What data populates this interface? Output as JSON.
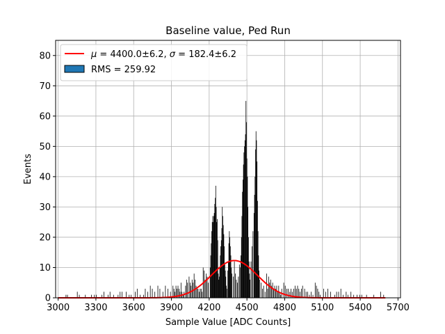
{
  "chart_data": {
    "type": "bar",
    "title": "Baseline value, Ped Run",
    "xlabel": "Sample Value [ADC Counts]",
    "ylabel": "Events",
    "xlim": [
      2980,
      5720
    ],
    "ylim": [
      0,
      85
    ],
    "xticks": [
      3000,
      3300,
      3600,
      3900,
      4200,
      4500,
      4800,
      5100,
      5400,
      5700
    ],
    "yticks": [
      0,
      10,
      20,
      30,
      40,
      50,
      60,
      70,
      80
    ],
    "grid": true,
    "legend_position": "top-left",
    "legend": {
      "fit_label_mu": "μ",
      "fit_value_mu": "4400.0±6.2",
      "fit_label_sigma": "σ",
      "fit_value_sigma": "182.4±6.2",
      "hist_label": "RMS = 259.92"
    },
    "colors": {
      "fit": "#ff0000",
      "hist_legend_fill": "#1f77b4",
      "bars": "#000000",
      "grid": "#b0b0b0"
    },
    "histogram": {
      "name": "RMS = 259.92",
      "bin_width": 4,
      "bins": [
        [
          3060,
          1
        ],
        [
          3072,
          1
        ],
        [
          3150,
          2
        ],
        [
          3166,
          1
        ],
        [
          3214,
          1
        ],
        [
          3262,
          1
        ],
        [
          3286,
          1
        ],
        [
          3302,
          1
        ],
        [
          3346,
          1
        ],
        [
          3362,
          2
        ],
        [
          3394,
          1
        ],
        [
          3410,
          2
        ],
        [
          3438,
          1
        ],
        [
          3474,
          1
        ],
        [
          3490,
          2
        ],
        [
          3506,
          2
        ],
        [
          3538,
          2
        ],
        [
          3562,
          1
        ],
        [
          3578,
          1
        ],
        [
          3610,
          2
        ],
        [
          3626,
          3
        ],
        [
          3650,
          1
        ],
        [
          3676,
          1
        ],
        [
          3690,
          3
        ],
        [
          3710,
          2
        ],
        [
          3730,
          4
        ],
        [
          3746,
          3
        ],
        [
          3766,
          2
        ],
        [
          3790,
          4
        ],
        [
          3806,
          3
        ],
        [
          3830,
          2
        ],
        [
          3850,
          4
        ],
        [
          3870,
          3
        ],
        [
          3890,
          2
        ],
        [
          3910,
          4
        ],
        [
          3918,
          3
        ],
        [
          3926,
          2
        ],
        [
          3934,
          4
        ],
        [
          3942,
          3
        ],
        [
          3950,
          4
        ],
        [
          3958,
          3
        ],
        [
          3966,
          2
        ],
        [
          3974,
          5
        ],
        [
          3982,
          2
        ],
        [
          3990,
          1
        ],
        [
          3998,
          2
        ],
        [
          4010,
          4
        ],
        [
          4018,
          6
        ],
        [
          4026,
          5
        ],
        [
          4038,
          7
        ],
        [
          4046,
          5
        ],
        [
          4054,
          4
        ],
        [
          4062,
          6
        ],
        [
          4070,
          5
        ],
        [
          4078,
          8
        ],
        [
          4086,
          6
        ],
        [
          4094,
          4
        ],
        [
          4102,
          3
        ],
        [
          4110,
          3
        ],
        [
          4118,
          2
        ],
        [
          4126,
          3
        ],
        [
          4134,
          3
        ],
        [
          4142,
          2
        ],
        [
          4150,
          10
        ],
        [
          4158,
          9
        ],
        [
          4166,
          6
        ],
        [
          4174,
          8
        ],
        [
          4182,
          7
        ],
        [
          4190,
          5
        ],
        [
          4206,
          10
        ],
        [
          4210,
          14
        ],
        [
          4214,
          18
        ],
        [
          4218,
          22
        ],
        [
          4222,
          25
        ],
        [
          4226,
          27
        ],
        [
          4230,
          25
        ],
        [
          4234,
          27
        ],
        [
          4238,
          28
        ],
        [
          4242,
          31
        ],
        [
          4246,
          33
        ],
        [
          4250,
          37
        ],
        [
          4254,
          30
        ],
        [
          4258,
          25
        ],
        [
          4262,
          26
        ],
        [
          4266,
          19
        ],
        [
          4270,
          8
        ],
        [
          4274,
          6
        ],
        [
          4278,
          7
        ],
        [
          4282,
          10
        ],
        [
          4286,
          14
        ],
        [
          4290,
          17
        ],
        [
          4294,
          19
        ],
        [
          4298,
          23
        ],
        [
          4302,
          30
        ],
        [
          4306,
          27
        ],
        [
          4310,
          24
        ],
        [
          4314,
          21
        ],
        [
          4318,
          17
        ],
        [
          4322,
          11
        ],
        [
          4326,
          9
        ],
        [
          4330,
          7
        ],
        [
          4334,
          4
        ],
        [
          4338,
          3
        ],
        [
          4346,
          9
        ],
        [
          4350,
          12
        ],
        [
          4354,
          18
        ],
        [
          4358,
          22
        ],
        [
          4362,
          20
        ],
        [
          4366,
          17
        ],
        [
          4370,
          14
        ],
        [
          4374,
          10
        ],
        [
          4378,
          8
        ],
        [
          4390,
          7
        ],
        [
          4398,
          12
        ],
        [
          4406,
          8
        ],
        [
          4414,
          6
        ],
        [
          4422,
          5
        ],
        [
          4430,
          7
        ],
        [
          4438,
          11
        ],
        [
          4446,
          10
        ],
        [
          4450,
          14
        ],
        [
          4454,
          20
        ],
        [
          4458,
          27
        ],
        [
          4462,
          35
        ],
        [
          4466,
          39
        ],
        [
          4470,
          44
        ],
        [
          4474,
          48
        ],
        [
          4478,
          50
        ],
        [
          4482,
          52
        ],
        [
          4486,
          54
        ],
        [
          4490,
          65
        ],
        [
          4494,
          58
        ],
        [
          4498,
          46
        ],
        [
          4502,
          40
        ],
        [
          4506,
          30
        ],
        [
          4510,
          20
        ],
        [
          4514,
          12
        ],
        [
          4518,
          8
        ],
        [
          4522,
          6
        ],
        [
          4530,
          12
        ],
        [
          4538,
          17
        ],
        [
          4546,
          22
        ],
        [
          4554,
          28
        ],
        [
          4558,
          34
        ],
        [
          4562,
          40
        ],
        [
          4566,
          49
        ],
        [
          4570,
          55
        ],
        [
          4574,
          52
        ],
        [
          4578,
          45
        ],
        [
          4582,
          32
        ],
        [
          4586,
          22
        ],
        [
          4590,
          14
        ],
        [
          4594,
          9
        ],
        [
          4598,
          6
        ],
        [
          4610,
          5
        ],
        [
          4622,
          3
        ],
        [
          4630,
          4
        ],
        [
          4642,
          2
        ],
        [
          4654,
          8
        ],
        [
          4662,
          3
        ],
        [
          4670,
          7
        ],
        [
          4678,
          5
        ],
        [
          4686,
          6
        ],
        [
          4694,
          4
        ],
        [
          4702,
          5
        ],
        [
          4710,
          3
        ],
        [
          4718,
          4
        ],
        [
          4726,
          3
        ],
        [
          4734,
          4
        ],
        [
          4742,
          2
        ],
        [
          4750,
          4
        ],
        [
          4758,
          2
        ],
        [
          4766,
          1
        ],
        [
          4774,
          3
        ],
        [
          4790,
          5
        ],
        [
          4802,
          4
        ],
        [
          4814,
          3
        ],
        [
          4826,
          3
        ],
        [
          4838,
          2
        ],
        [
          4848,
          3
        ],
        [
          4858,
          2
        ],
        [
          4870,
          3
        ],
        [
          4880,
          4
        ],
        [
          4890,
          3
        ],
        [
          4900,
          4
        ],
        [
          4910,
          3
        ],
        [
          4920,
          2
        ],
        [
          4930,
          3
        ],
        [
          4940,
          4
        ],
        [
          4956,
          3
        ],
        [
          4968,
          2
        ],
        [
          4980,
          2
        ],
        [
          4994,
          1
        ],
        [
          5008,
          2
        ],
        [
          5022,
          1
        ],
        [
          5040,
          5
        ],
        [
          5050,
          4
        ],
        [
          5060,
          3
        ],
        [
          5070,
          2
        ],
        [
          5080,
          1
        ],
        [
          5108,
          3
        ],
        [
          5124,
          2
        ],
        [
          5140,
          3
        ],
        [
          5162,
          2
        ],
        [
          5196,
          1
        ],
        [
          5210,
          2
        ],
        [
          5226,
          2
        ],
        [
          5244,
          3
        ],
        [
          5262,
          1
        ],
        [
          5286,
          2
        ],
        [
          5300,
          1
        ],
        [
          5324,
          2
        ],
        [
          5346,
          1
        ],
        [
          5372,
          1
        ],
        [
          5394,
          1
        ],
        [
          5410,
          1
        ],
        [
          5448,
          1
        ],
        [
          5506,
          1
        ],
        [
          5560,
          2
        ],
        [
          5584,
          1
        ]
      ]
    },
    "fit": {
      "mu": 4400.0,
      "sigma": 182.4,
      "amplitude": 12.3,
      "x_range": [
        3000,
        5600
      ]
    }
  }
}
